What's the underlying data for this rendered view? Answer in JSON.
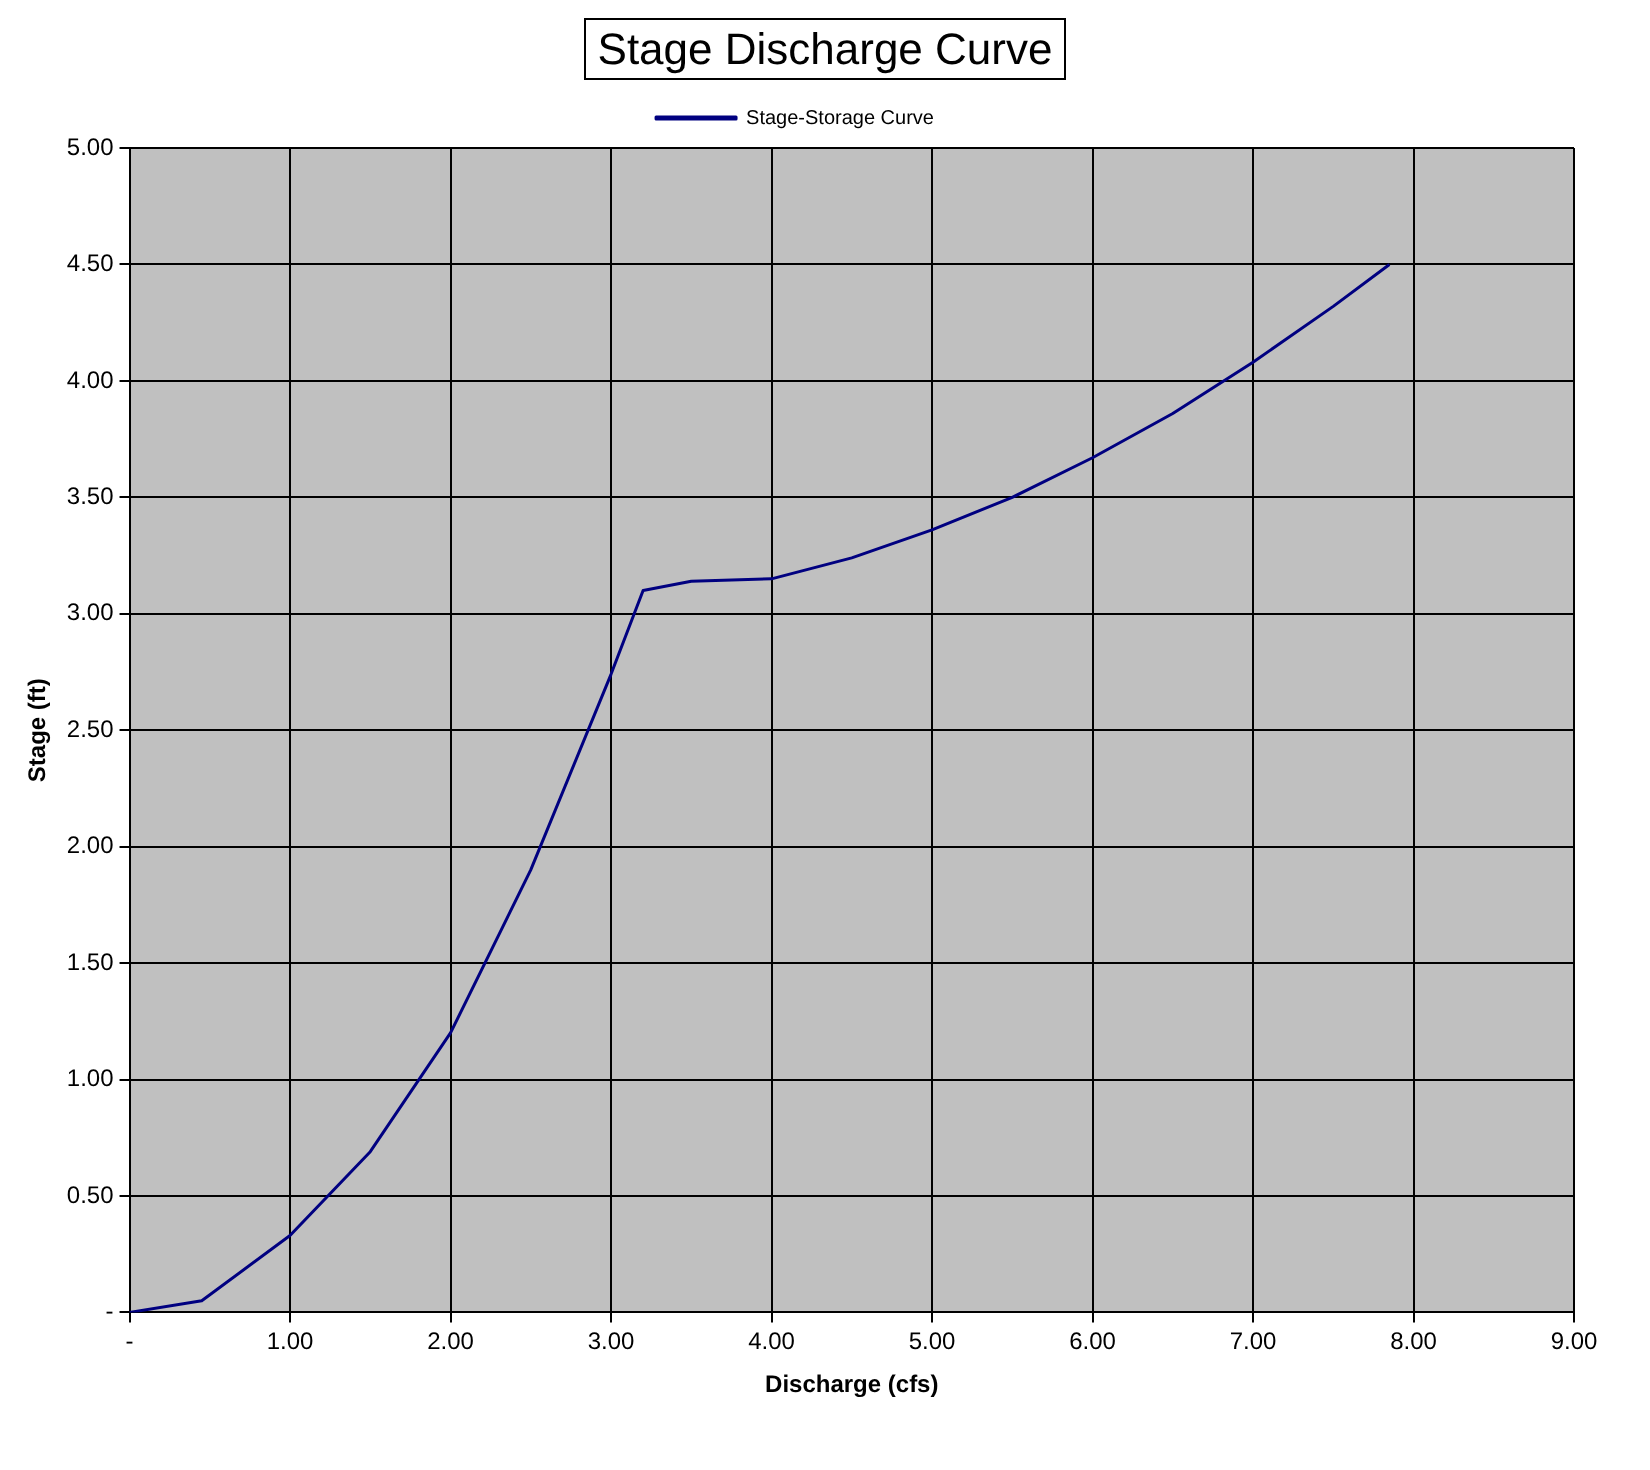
{
  "chart_data": {
    "type": "line",
    "title": "Stage Discharge Curve",
    "xlabel": "Discharge (cfs)",
    "ylabel": "Stage (ft)",
    "series": [
      {
        "name": "Stage-Storage Curve",
        "color": "#000080",
        "x": [
          0,
          0.45,
          1.0,
          1.5,
          2.0,
          2.5,
          3.0,
          3.2,
          3.5,
          4.0,
          4.5,
          5.0,
          5.5,
          6.0,
          6.5,
          7.0,
          7.5,
          7.85
        ],
        "values": [
          0,
          0.05,
          0.33,
          0.69,
          1.2,
          1.9,
          2.74,
          3.1,
          3.14,
          3.15,
          3.24,
          3.36,
          3.5,
          3.67,
          3.86,
          4.08,
          4.32,
          4.5
        ]
      }
    ],
    "xlim": [
      0,
      9
    ],
    "xticks": [
      {
        "value": 0,
        "label": "-"
      },
      {
        "value": 1,
        "label": "1.00"
      },
      {
        "value": 2,
        "label": "2.00"
      },
      {
        "value": 3,
        "label": "3.00"
      },
      {
        "value": 4,
        "label": "4.00"
      },
      {
        "value": 5,
        "label": "5.00"
      },
      {
        "value": 6,
        "label": "6.00"
      },
      {
        "value": 7,
        "label": "7.00"
      },
      {
        "value": 8,
        "label": "8.00"
      },
      {
        "value": 9,
        "label": "9.00"
      }
    ],
    "ylim": [
      0,
      5
    ],
    "yticks": [
      {
        "value": 0,
        "label": "-"
      },
      {
        "value": 0.5,
        "label": "0.50"
      },
      {
        "value": 1,
        "label": "1.00"
      },
      {
        "value": 1.5,
        "label": "1.50"
      },
      {
        "value": 2,
        "label": "2.00"
      },
      {
        "value": 2.5,
        "label": "2.50"
      },
      {
        "value": 3,
        "label": "3.00"
      },
      {
        "value": 3.5,
        "label": "3.50"
      },
      {
        "value": 4,
        "label": "4.00"
      },
      {
        "value": 4.5,
        "label": "4.50"
      },
      {
        "value": 5,
        "label": "5.00"
      }
    ],
    "grid": true,
    "legend": "top",
    "marker": "none",
    "line_style": "solid"
  }
}
